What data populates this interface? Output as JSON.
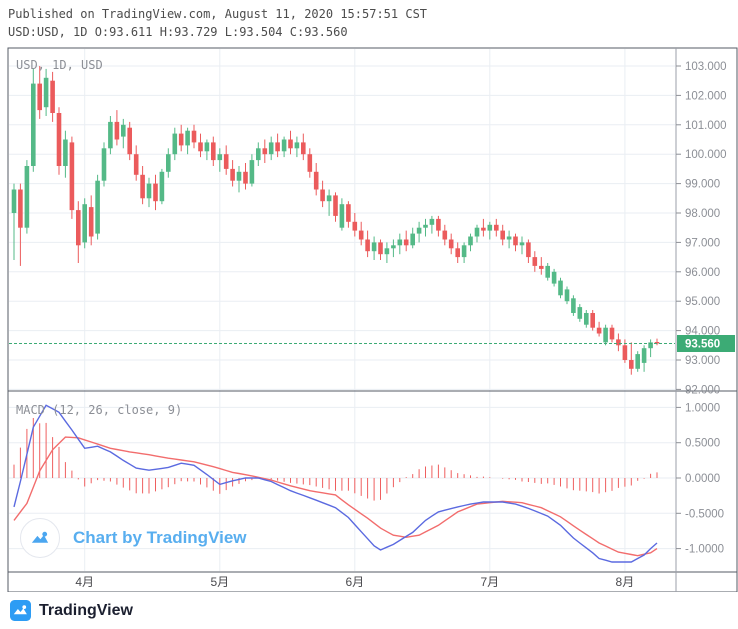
{
  "header": {
    "line1": "Published on TradingView.com, August 11, 2020 15:57:51 CST",
    "line2": "USD:USD, 1D O:93.611 H:93.729 L:93.504 C:93.560"
  },
  "main_chart": {
    "legend": "USD, 1D, USD",
    "price_axis": [
      {
        "text": "103.000",
        "value": 103
      },
      {
        "text": "102.000",
        "value": 102
      },
      {
        "text": "101.000",
        "value": 101
      },
      {
        "text": "100.000",
        "value": 100
      },
      {
        "text": "99.000",
        "value": 99
      },
      {
        "text": "98.000",
        "value": 98
      },
      {
        "text": "97.000",
        "value": 97
      },
      {
        "text": "96.000",
        "value": 96
      },
      {
        "text": "95.000",
        "value": 95
      },
      {
        "text": "94.000",
        "value": 94
      },
      {
        "text": "93.000",
        "value": 93
      },
      {
        "text": "92.000",
        "value": 92
      }
    ],
    "current_price": {
      "text": "93.560",
      "value": 93.56
    }
  },
  "macd_panel": {
    "label": "MACD (12, 26, close, 9)",
    "axis": [
      {
        "text": "1.0000",
        "value": 1
      },
      {
        "text": "0.5000",
        "value": 0.5
      },
      {
        "text": "0.0000",
        "value": 0
      },
      {
        "text": "-0.5000",
        "value": -0.5
      },
      {
        "text": "-1.0000",
        "value": -1
      }
    ]
  },
  "time_axis": {
    "months": [
      {
        "label": "4月",
        "index": 11
      },
      {
        "label": "5月",
        "index": 32
      },
      {
        "label": "6月",
        "index": 53
      },
      {
        "label": "7月",
        "index": 74
      },
      {
        "label": "8月",
        "index": 95
      }
    ]
  },
  "watermark": {
    "text": "Chart by TradingView"
  },
  "footer": {
    "brand": "TradingView"
  },
  "colors": {
    "up": "#54b987",
    "down": "#eb5b5c",
    "macd": "#5b6ae0",
    "signal": "#f26d6d",
    "hist": "#ef5f5f",
    "accent": "#3cab75",
    "grid": "#eaeef3",
    "frame": "#565b66",
    "axissep": "#9b9fa8",
    "axistext": "#8c8f96",
    "logo_blue": "#2d9cf4",
    "watermark_blue": "#58aeef"
  },
  "chart_data": {
    "type": "candlestick",
    "symbol": "USD:USD",
    "interval": "1D",
    "ohlc_last": {
      "open": 93.611,
      "high": 93.729,
      "low": 93.504,
      "close": 93.56
    },
    "price_range": [
      92,
      103
    ],
    "candles": [
      [
        98.0,
        99.0,
        96.4,
        98.8
      ],
      [
        98.8,
        99.0,
        96.2,
        97.5
      ],
      [
        97.5,
        99.8,
        97.3,
        99.6
      ],
      [
        99.6,
        102.9,
        99.4,
        102.4
      ],
      [
        102.4,
        103.0,
        101.2,
        101.5
      ],
      [
        101.6,
        102.9,
        101.3,
        102.6
      ],
      [
        102.5,
        102.8,
        101.1,
        101.4
      ],
      [
        101.4,
        101.6,
        99.3,
        99.6
      ],
      [
        99.6,
        100.8,
        99.2,
        100.5
      ],
      [
        100.4,
        100.6,
        97.8,
        98.1
      ],
      [
        98.1,
        98.4,
        96.3,
        96.9
      ],
      [
        97.0,
        98.5,
        96.8,
        98.3
      ],
      [
        98.2,
        98.6,
        96.9,
        97.2
      ],
      [
        97.3,
        99.3,
        97.1,
        99.1
      ],
      [
        99.1,
        100.4,
        98.9,
        100.2
      ],
      [
        100.2,
        101.3,
        100.0,
        101.1
      ],
      [
        101.1,
        101.5,
        100.3,
        100.5
      ],
      [
        100.6,
        101.2,
        100.2,
        101.0
      ],
      [
        100.9,
        101.1,
        99.8,
        100.0
      ],
      [
        100.0,
        100.3,
        99.1,
        99.3
      ],
      [
        99.3,
        99.6,
        98.3,
        98.5
      ],
      [
        98.5,
        99.2,
        98.2,
        99.0
      ],
      [
        99.0,
        99.3,
        98.1,
        98.4
      ],
      [
        98.4,
        99.5,
        98.3,
        99.4
      ],
      [
        99.4,
        100.2,
        99.2,
        100.0
      ],
      [
        100.0,
        100.9,
        99.8,
        100.7
      ],
      [
        100.7,
        101.0,
        100.1,
        100.3
      ],
      [
        100.3,
        100.9,
        100.0,
        100.8
      ],
      [
        100.8,
        101.0,
        100.2,
        100.4
      ],
      [
        100.4,
        100.7,
        99.9,
        100.1
      ],
      [
        100.1,
        100.5,
        99.8,
        100.4
      ],
      [
        100.4,
        100.6,
        99.6,
        99.8
      ],
      [
        99.8,
        100.2,
        99.4,
        100.0
      ],
      [
        100.0,
        100.3,
        99.3,
        99.5
      ],
      [
        99.5,
        99.8,
        98.9,
        99.1
      ],
      [
        99.1,
        99.6,
        98.7,
        99.4
      ],
      [
        99.4,
        99.7,
        98.8,
        99.0
      ],
      [
        99.0,
        100.0,
        98.9,
        99.8
      ],
      [
        99.8,
        100.4,
        99.6,
        100.2
      ],
      [
        100.2,
        100.5,
        99.7,
        100.0
      ],
      [
        100.0,
        100.6,
        99.8,
        100.4
      ],
      [
        100.4,
        100.7,
        99.9,
        100.1
      ],
      [
        100.1,
        100.6,
        99.9,
        100.5
      ],
      [
        100.5,
        100.8,
        100.0,
        100.2
      ],
      [
        100.2,
        100.6,
        99.9,
        100.4
      ],
      [
        100.4,
        100.7,
        99.8,
        100.0
      ],
      [
        100.0,
        100.2,
        99.2,
        99.4
      ],
      [
        99.4,
        99.7,
        98.6,
        98.8
      ],
      [
        98.8,
        99.1,
        98.2,
        98.4
      ],
      [
        98.4,
        98.8,
        97.9,
        98.6
      ],
      [
        98.6,
        98.7,
        97.7,
        97.9
      ],
      [
        97.5,
        98.5,
        97.4,
        98.3
      ],
      [
        98.3,
        98.4,
        97.5,
        97.7
      ],
      [
        97.7,
        98.0,
        97.2,
        97.4
      ],
      [
        97.4,
        97.7,
        96.9,
        97.1
      ],
      [
        97.1,
        97.4,
        96.5,
        96.7
      ],
      [
        96.7,
        97.2,
        96.4,
        97.0
      ],
      [
        97.0,
        97.1,
        96.4,
        96.6
      ],
      [
        96.6,
        97.0,
        96.3,
        96.8
      ],
      [
        96.8,
        97.1,
        96.5,
        96.9
      ],
      [
        96.9,
        97.3,
        96.6,
        97.1
      ],
      [
        97.1,
        97.4,
        96.7,
        96.9
      ],
      [
        96.9,
        97.5,
        96.8,
        97.3
      ],
      [
        97.3,
        97.7,
        97.0,
        97.5
      ],
      [
        97.5,
        97.8,
        97.2,
        97.6
      ],
      [
        97.6,
        97.9,
        97.3,
        97.8
      ],
      [
        97.8,
        97.9,
        97.2,
        97.4
      ],
      [
        97.4,
        97.6,
        96.9,
        97.1
      ],
      [
        97.1,
        97.3,
        96.6,
        96.8
      ],
      [
        96.8,
        97.0,
        96.3,
        96.5
      ],
      [
        96.5,
        97.0,
        96.3,
        96.9
      ],
      [
        96.9,
        97.3,
        96.7,
        97.2
      ],
      [
        97.2,
        97.6,
        97.0,
        97.5
      ],
      [
        97.5,
        97.8,
        97.2,
        97.4
      ],
      [
        97.4,
        97.7,
        97.1,
        97.6
      ],
      [
        97.6,
        97.8,
        97.2,
        97.4
      ],
      [
        97.4,
        97.6,
        96.9,
        97.1
      ],
      [
        97.1,
        97.4,
        96.8,
        97.2
      ],
      [
        97.2,
        97.3,
        96.7,
        96.9
      ],
      [
        96.9,
        97.2,
        96.6,
        97.0
      ],
      [
        97.0,
        97.1,
        96.3,
        96.5
      ],
      [
        96.5,
        96.7,
        96.0,
        96.2
      ],
      [
        96.2,
        96.5,
        95.9,
        96.1
      ],
      [
        95.8,
        96.3,
        95.7,
        96.2
      ],
      [
        95.6,
        96.1,
        95.5,
        96.0
      ],
      [
        95.2,
        95.8,
        95.1,
        95.7
      ],
      [
        95.0,
        95.5,
        94.9,
        95.4
      ],
      [
        94.6,
        95.2,
        94.5,
        95.1
      ],
      [
        94.4,
        94.9,
        94.3,
        94.8
      ],
      [
        94.2,
        94.7,
        94.1,
        94.6
      ],
      [
        94.6,
        94.7,
        94.0,
        94.1
      ],
      [
        94.1,
        94.3,
        93.8,
        93.9
      ],
      [
        93.6,
        94.2,
        93.5,
        94.1
      ],
      [
        94.1,
        94.2,
        93.6,
        93.7
      ],
      [
        93.7,
        93.9,
        93.3,
        93.5
      ],
      [
        93.5,
        93.7,
        92.9,
        93.0
      ],
      [
        93.0,
        93.6,
        92.5,
        92.7
      ],
      [
        92.7,
        93.3,
        92.6,
        93.2
      ],
      [
        92.9,
        93.5,
        92.6,
        93.4
      ],
      [
        93.4,
        93.7,
        93.1,
        93.6
      ],
      [
        93.611,
        93.729,
        93.504,
        93.56
      ]
    ],
    "macd": {
      "params": [
        12,
        26,
        "close",
        9
      ],
      "range": [
        -1,
        1
      ],
      "line_breakpoints": [
        [
          0,
          -0.41
        ],
        [
          1,
          -0.05
        ],
        [
          3,
          0.72
        ],
        [
          5,
          1.03
        ],
        [
          7,
          0.93
        ],
        [
          9,
          0.68
        ],
        [
          11,
          0.42
        ],
        [
          13,
          0.45
        ],
        [
          15,
          0.37
        ],
        [
          17,
          0.25
        ],
        [
          19,
          0.14
        ],
        [
          21,
          0.11
        ],
        [
          24,
          0.15
        ],
        [
          26,
          0.21
        ],
        [
          28,
          0.18
        ],
        [
          30,
          0.05
        ],
        [
          32,
          -0.09
        ],
        [
          34,
          -0.04
        ],
        [
          36,
          0
        ],
        [
          38,
          0
        ],
        [
          40,
          -0.05
        ],
        [
          43,
          -0.18
        ],
        [
          46,
          -0.28
        ],
        [
          48,
          -0.35
        ],
        [
          50,
          -0.42
        ],
        [
          52,
          -0.56
        ],
        [
          54,
          -0.76
        ],
        [
          56,
          -0.96
        ],
        [
          57,
          -1.02
        ],
        [
          59,
          -0.94
        ],
        [
          62,
          -0.77
        ],
        [
          64,
          -0.6
        ],
        [
          66,
          -0.48
        ],
        [
          69,
          -0.41
        ],
        [
          71,
          -0.37
        ],
        [
          73,
          -0.34
        ],
        [
          76,
          -0.34
        ],
        [
          78,
          -0.37
        ],
        [
          80,
          -0.43
        ],
        [
          83,
          -0.54
        ],
        [
          85,
          -0.67
        ],
        [
          87,
          -0.85
        ],
        [
          90,
          -1.06
        ],
        [
          91,
          -1.14
        ],
        [
          93,
          -1.19
        ],
        [
          96,
          -1.19
        ],
        [
          98,
          -1.09
        ],
        [
          99,
          -1.0
        ],
        [
          100,
          -0.92
        ]
      ],
      "signal_breakpoints": [
        [
          0,
          -0.6
        ],
        [
          2,
          -0.36
        ],
        [
          4,
          0.1
        ],
        [
          6,
          0.4
        ],
        [
          8,
          0.58
        ],
        [
          10,
          0.57
        ],
        [
          12,
          0.51
        ],
        [
          15,
          0.42
        ],
        [
          18,
          0.37
        ],
        [
          21,
          0.33
        ],
        [
          24,
          0.28
        ],
        [
          28,
          0.23
        ],
        [
          31,
          0.16
        ],
        [
          34,
          0.08
        ],
        [
          37,
          0.03
        ],
        [
          40,
          -0.03
        ],
        [
          43,
          -0.11
        ],
        [
          46,
          -0.18
        ],
        [
          50,
          -0.24
        ],
        [
          52,
          -0.38
        ],
        [
          55,
          -0.57
        ],
        [
          57,
          -0.71
        ],
        [
          59,
          -0.81
        ],
        [
          61,
          -0.84
        ],
        [
          63,
          -0.81
        ],
        [
          66,
          -0.67
        ],
        [
          69,
          -0.48
        ],
        [
          72,
          -0.37
        ],
        [
          76,
          -0.33
        ],
        [
          79,
          -0.35
        ],
        [
          82,
          -0.42
        ],
        [
          85,
          -0.55
        ],
        [
          88,
          -0.74
        ],
        [
          91,
          -0.92
        ],
        [
          94,
          -1.05
        ],
        [
          97,
          -1.1
        ],
        [
          99,
          -1.06
        ],
        [
          100,
          -1.0
        ]
      ]
    }
  }
}
